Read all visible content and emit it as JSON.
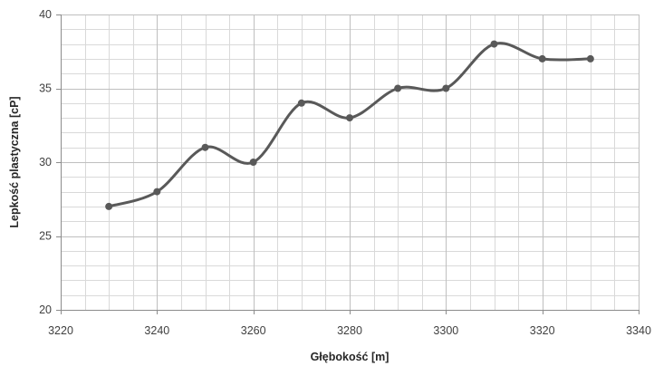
{
  "chart_data": {
    "type": "scatter",
    "title": "",
    "xlabel": "Głębokość [m]",
    "ylabel": "Lepkość plastyczna [cP]",
    "xlim": [
      3220,
      3340
    ],
    "ylim": [
      20,
      40
    ],
    "x_major_step": 20,
    "y_major_step": 5,
    "x_minor_step": 5,
    "y_minor_step": 1,
    "grid": true,
    "smooth_line": true,
    "markers": true,
    "series_color": "#595959",
    "x_tick_labels": [
      "3220",
      "3240",
      "3260",
      "3280",
      "3300",
      "3320",
      "3340"
    ],
    "y_tick_labels": [
      "20",
      "25",
      "30",
      "35",
      "40"
    ],
    "series": [
      {
        "x": [
          3230,
          3240,
          3250,
          3260,
          3270,
          3280,
          3290,
          3300,
          3310,
          3320,
          3330
        ],
        "y": [
          27,
          28,
          31,
          30,
          34,
          33,
          35,
          35,
          38,
          37,
          37
        ]
      }
    ]
  }
}
